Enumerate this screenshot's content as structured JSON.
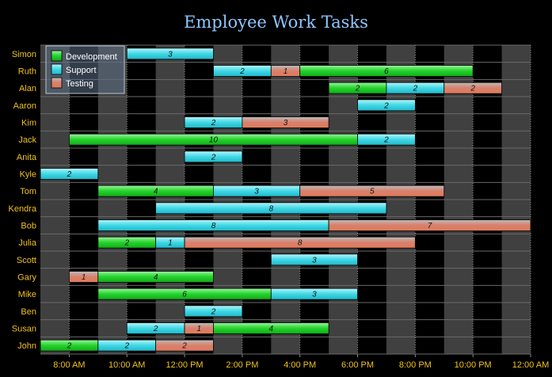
{
  "chart_data": {
    "type": "bar",
    "orientation": "horizontal-gantt",
    "title": "Employee Work Tasks",
    "xlabel": "",
    "ylabel": "",
    "x_range_hours": [
      7,
      24
    ],
    "x_ticks": [
      {
        "hour": 8,
        "label": "8:00 AM"
      },
      {
        "hour": 10,
        "label": "10:00 AM"
      },
      {
        "hour": 12,
        "label": "12:00 PM"
      },
      {
        "hour": 14,
        "label": "2:00 PM"
      },
      {
        "hour": 16,
        "label": "4:00 PM"
      },
      {
        "hour": 18,
        "label": "6:00 PM"
      },
      {
        "hour": 20,
        "label": "8:00 PM"
      },
      {
        "hour": 22,
        "label": "10:00 PM"
      },
      {
        "hour": 24,
        "label": "12:00 AM"
      }
    ],
    "legend": {
      "position": "top-left",
      "entries": [
        {
          "name": "Development",
          "color": "#22d42a"
        },
        {
          "name": "Support",
          "color": "#3fd8e6"
        },
        {
          "name": "Testing",
          "color": "#d9806a"
        }
      ]
    },
    "employees": [
      "Simon",
      "Ruth",
      "Alan",
      "Aaron",
      "Kim",
      "Jack",
      "Anita",
      "Kyle",
      "Tom",
      "Kendra",
      "Bob",
      "Julia",
      "Scott",
      "Gary",
      "Mike",
      "Ben",
      "Susan",
      "John"
    ],
    "tasks": [
      {
        "employee": "Simon",
        "type": "Support",
        "start": 10,
        "hours": 3
      },
      {
        "employee": "Ruth",
        "type": "Support",
        "start": 13,
        "hours": 2
      },
      {
        "employee": "Ruth",
        "type": "Testing",
        "start": 15,
        "hours": 1
      },
      {
        "employee": "Ruth",
        "type": "Development",
        "start": 16,
        "hours": 6
      },
      {
        "employee": "Alan",
        "type": "Development",
        "start": 17,
        "hours": 2
      },
      {
        "employee": "Alan",
        "type": "Support",
        "start": 19,
        "hours": 2
      },
      {
        "employee": "Alan",
        "type": "Testing",
        "start": 21,
        "hours": 2
      },
      {
        "employee": "Aaron",
        "type": "Support",
        "start": 18,
        "hours": 2
      },
      {
        "employee": "Kim",
        "type": "Support",
        "start": 12,
        "hours": 2
      },
      {
        "employee": "Kim",
        "type": "Testing",
        "start": 14,
        "hours": 3
      },
      {
        "employee": "Jack",
        "type": "Development",
        "start": 8,
        "hours": 10
      },
      {
        "employee": "Jack",
        "type": "Support",
        "start": 18,
        "hours": 2
      },
      {
        "employee": "Anita",
        "type": "Support",
        "start": 12,
        "hours": 2
      },
      {
        "employee": "Kyle",
        "type": "Support",
        "start": 7,
        "hours": 2
      },
      {
        "employee": "Tom",
        "type": "Development",
        "start": 9,
        "hours": 4
      },
      {
        "employee": "Tom",
        "type": "Support",
        "start": 13,
        "hours": 3
      },
      {
        "employee": "Tom",
        "type": "Testing",
        "start": 16,
        "hours": 5
      },
      {
        "employee": "Kendra",
        "type": "Support",
        "start": 11,
        "hours": 8
      },
      {
        "employee": "Bob",
        "type": "Support",
        "start": 9,
        "hours": 8
      },
      {
        "employee": "Bob",
        "type": "Testing",
        "start": 17,
        "hours": 7
      },
      {
        "employee": "Julia",
        "type": "Development",
        "start": 9,
        "hours": 2
      },
      {
        "employee": "Julia",
        "type": "Support",
        "start": 11,
        "hours": 1
      },
      {
        "employee": "Julia",
        "type": "Testing",
        "start": 12,
        "hours": 8
      },
      {
        "employee": "Scott",
        "type": "Support",
        "start": 15,
        "hours": 3
      },
      {
        "employee": "Gary",
        "type": "Testing",
        "start": 8,
        "hours": 1
      },
      {
        "employee": "Gary",
        "type": "Development",
        "start": 9,
        "hours": 4
      },
      {
        "employee": "Mike",
        "type": "Development",
        "start": 9,
        "hours": 6
      },
      {
        "employee": "Mike",
        "type": "Support",
        "start": 15,
        "hours": 3
      },
      {
        "employee": "Ben",
        "type": "Support",
        "start": 12,
        "hours": 2
      },
      {
        "employee": "Susan",
        "type": "Support",
        "start": 10,
        "hours": 2
      },
      {
        "employee": "Susan",
        "type": "Testing",
        "start": 12,
        "hours": 1
      },
      {
        "employee": "Susan",
        "type": "Development",
        "start": 13,
        "hours": 4
      },
      {
        "employee": "John",
        "type": "Development",
        "start": 7,
        "hours": 2
      },
      {
        "employee": "John",
        "type": "Support",
        "start": 9,
        "hours": 2
      },
      {
        "employee": "John",
        "type": "Testing",
        "start": 11,
        "hours": 2
      }
    ]
  }
}
